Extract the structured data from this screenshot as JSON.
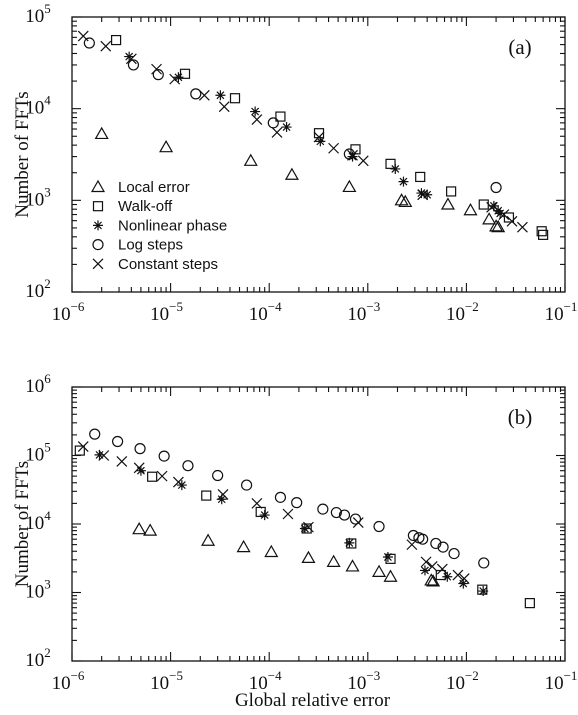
{
  "chart_data": [
    {
      "type": "scatter",
      "panel_label": "(a)",
      "xlabel": "",
      "ylabel": "Number of FFTs",
      "x_scale": "log",
      "y_scale": "log",
      "xlim": [
        1e-06,
        0.1
      ],
      "ylim": [
        100,
        100000
      ],
      "x_ticks": [
        {
          "value": 1e-06,
          "base": "10",
          "exp": "−6"
        },
        {
          "value": 1e-05,
          "base": "10",
          "exp": "−5"
        },
        {
          "value": 0.0001,
          "base": "10",
          "exp": "−4"
        },
        {
          "value": 0.001,
          "base": "10",
          "exp": "−3"
        },
        {
          "value": 0.01,
          "base": "10",
          "exp": "−2"
        },
        {
          "value": 0.1,
          "base": "10",
          "exp": "−1"
        }
      ],
      "y_ticks": [
        {
          "value": 100,
          "base": "10",
          "exp": "2"
        },
        {
          "value": 1000,
          "base": "10",
          "exp": "3"
        },
        {
          "value": 10000,
          "base": "10",
          "exp": "4"
        },
        {
          "value": 100000,
          "base": "10",
          "exp": "5"
        }
      ],
      "legend_position": "bottom-left",
      "series": [
        {
          "name": "Local error",
          "marker": "triangle",
          "points": [
            [
              2e-06,
              5300
            ],
            [
              9e-06,
              3800
            ],
            [
              6.5e-05,
              2700
            ],
            [
              0.00017,
              1900
            ],
            [
              0.00065,
              1400
            ],
            [
              0.0022,
              1000
            ],
            [
              0.0024,
              960
            ],
            [
              0.0065,
              900
            ],
            [
              0.011,
              780
            ],
            [
              0.017,
              620
            ],
            [
              0.02,
              520
            ],
            [
              0.021,
              510
            ]
          ]
        },
        {
          "name": "Walk-off",
          "marker": "square",
          "points": [
            [
              2.8e-06,
              56000
            ],
            [
              1.4e-05,
              24000
            ],
            [
              4.5e-05,
              13000
            ],
            [
              0.00013,
              8200
            ],
            [
              0.00032,
              5400
            ],
            [
              0.00075,
              3600
            ],
            [
              0.0017,
              2500
            ],
            [
              0.0034,
              1800
            ],
            [
              0.007,
              1250
            ],
            [
              0.015,
              900
            ],
            [
              0.027,
              650
            ],
            [
              0.058,
              460
            ],
            [
              0.06,
              420
            ]
          ]
        },
        {
          "name": "Nonlinear phase",
          "marker": "asterisk",
          "points": [
            [
              3.8e-06,
              37000
            ],
            [
              1.2e-05,
              22000
            ],
            [
              3.2e-05,
              14000
            ],
            [
              7.2e-05,
              9300
            ],
            [
              0.00015,
              6300
            ],
            [
              0.00033,
              4400
            ],
            [
              0.0007,
              3000
            ],
            [
              0.0019,
              2200
            ],
            [
              0.0023,
              1600
            ],
            [
              0.0035,
              1200
            ],
            [
              0.004,
              1150
            ],
            [
              0.019,
              870
            ],
            [
              0.021,
              770
            ],
            [
              0.022,
              720
            ]
          ]
        },
        {
          "name": "Log steps",
          "marker": "circle",
          "points": [
            [
              1.5e-06,
              52000
            ],
            [
              4.2e-06,
              30000
            ],
            [
              7.5e-06,
              23500
            ],
            [
              1.8e-05,
              14500
            ],
            [
              0.00011,
              7000
            ],
            [
              0.00065,
              3200
            ],
            [
              0.02,
              1380
            ]
          ]
        },
        {
          "name": "Constant steps",
          "marker": "cross",
          "points": [
            [
              1.3e-06,
              62000
            ],
            [
              2.2e-06,
              48000
            ],
            [
              4e-06,
              35000
            ],
            [
              7.2e-06,
              27000
            ],
            [
              1.1e-05,
              21000
            ],
            [
              2.2e-05,
              14000
            ],
            [
              3.5e-05,
              10500
            ],
            [
              7.5e-05,
              7600
            ],
            [
              0.00012,
              5500
            ],
            [
              0.00032,
              4900
            ],
            [
              0.00045,
              3700
            ],
            [
              0.0007,
              3100
            ],
            [
              0.0009,
              2700
            ],
            [
              0.0036,
              1150
            ],
            [
              0.018,
              840
            ],
            [
              0.024,
              700
            ],
            [
              0.029,
              590
            ],
            [
              0.037,
              510
            ]
          ]
        }
      ]
    },
    {
      "type": "scatter",
      "panel_label": "(b)",
      "xlabel": "Global relative error",
      "ylabel": "Number of FFTs",
      "x_scale": "log",
      "y_scale": "log",
      "xlim": [
        1e-06,
        0.1
      ],
      "ylim": [
        100,
        1000000
      ],
      "x_ticks": [
        {
          "value": 1e-06,
          "base": "10",
          "exp": "−6"
        },
        {
          "value": 1e-05,
          "base": "10",
          "exp": "−5"
        },
        {
          "value": 0.0001,
          "base": "10",
          "exp": "−4"
        },
        {
          "value": 0.001,
          "base": "10",
          "exp": "−3"
        },
        {
          "value": 0.01,
          "base": "10",
          "exp": "−2"
        },
        {
          "value": 0.1,
          "base": "10",
          "exp": "−1"
        }
      ],
      "y_ticks": [
        {
          "value": 100,
          "base": "10",
          "exp": "2"
        },
        {
          "value": 1000,
          "base": "10",
          "exp": "3"
        },
        {
          "value": 10000,
          "base": "10",
          "exp": "4"
        },
        {
          "value": 100000,
          "base": "10",
          "exp": "5"
        },
        {
          "value": 1000000,
          "base": "10",
          "exp": "6"
        }
      ],
      "series": [
        {
          "name": "Local error",
          "marker": "triangle",
          "points": [
            [
              4.8e-06,
              8400
            ],
            [
              6.2e-06,
              8000
            ],
            [
              2.4e-05,
              5700
            ],
            [
              5.5e-05,
              4600
            ],
            [
              0.000105,
              3900
            ],
            [
              0.00025,
              3200
            ],
            [
              0.00045,
              2800
            ],
            [
              0.0007,
              2400
            ],
            [
              0.0013,
              2000
            ],
            [
              0.0017,
              1700
            ],
            [
              0.0044,
              1500
            ],
            [
              0.0046,
              1450
            ]
          ]
        },
        {
          "name": "Walk-off",
          "marker": "square",
          "points": [
            [
              1.2e-06,
              118000
            ],
            [
              6.5e-06,
              49000
            ],
            [
              2.3e-05,
              26000
            ],
            [
              8.2e-05,
              15000
            ],
            [
              0.00024,
              8600
            ],
            [
              0.00068,
              5200
            ],
            [
              0.0017,
              3100
            ],
            [
              0.0055,
              1800
            ],
            [
              0.0145,
              1100
            ],
            [
              0.044,
              700
            ]
          ]
        },
        {
          "name": "Nonlinear phase",
          "marker": "asterisk",
          "points": [
            [
              1.9e-06,
              102000
            ],
            [
              5e-06,
              60000
            ],
            [
              1.3e-05,
              37000
            ],
            [
              3.3e-05,
              23000
            ],
            [
              9e-05,
              13500
            ],
            [
              0.00023,
              8600
            ],
            [
              0.00065,
              5300
            ],
            [
              0.0016,
              3300
            ],
            [
              0.0038,
              2100
            ],
            [
              0.0064,
              1700
            ],
            [
              0.0093,
              1350
            ],
            [
              0.0148,
              1050
            ]
          ]
        },
        {
          "name": "Log steps",
          "marker": "circle",
          "points": [
            [
              1.7e-06,
              205000
            ],
            [
              2.9e-06,
              160000
            ],
            [
              4.9e-06,
              126000
            ],
            [
              8.6e-06,
              98000
            ],
            [
              1.5e-05,
              71000
            ],
            [
              3e-05,
              51000
            ],
            [
              5.9e-05,
              37000
            ],
            [
              0.00013,
              24500
            ],
            [
              0.00019,
              20500
            ],
            [
              0.00035,
              16500
            ],
            [
              0.00048,
              14700
            ],
            [
              0.00058,
              13500
            ],
            [
              0.00075,
              11800
            ],
            [
              0.0013,
              9200
            ],
            [
              0.0029,
              6800
            ],
            [
              0.0033,
              6300
            ],
            [
              0.0036,
              6000
            ],
            [
              0.0049,
              5200
            ],
            [
              0.0058,
              4600
            ],
            [
              0.0075,
              3700
            ],
            [
              0.015,
              2700
            ]
          ]
        },
        {
          "name": "Constant steps",
          "marker": "cross",
          "points": [
            [
              1.3e-06,
              135000
            ],
            [
              2.1e-06,
              100000
            ],
            [
              3.2e-06,
              82000
            ],
            [
              4.8e-06,
              66000
            ],
            [
              8.2e-06,
              50000
            ],
            [
              1.2e-05,
              41000
            ],
            [
              3.4e-05,
              27000
            ],
            [
              7.5e-05,
              20000
            ],
            [
              0.000155,
              14000
            ],
            [
              0.00025,
              9000
            ],
            [
              0.0008,
              10500
            ],
            [
              0.0028,
              5000
            ],
            [
              0.0039,
              2800
            ],
            [
              0.0045,
              2400
            ],
            [
              0.0057,
              2200
            ],
            [
              0.0082,
              1800
            ],
            [
              0.0095,
              1600
            ]
          ]
        }
      ]
    }
  ]
}
